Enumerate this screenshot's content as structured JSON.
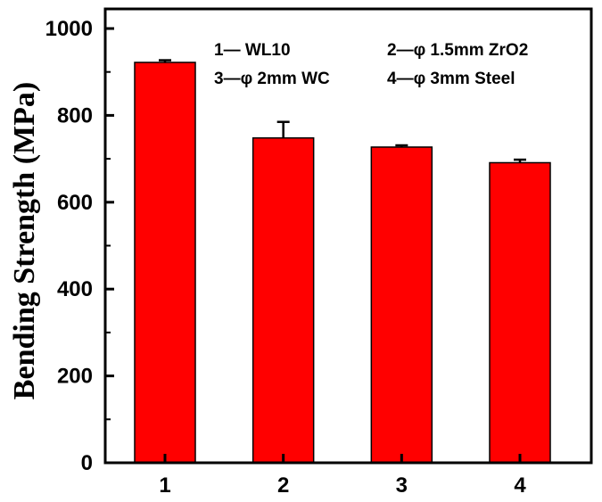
{
  "chart_data": {
    "type": "bar",
    "categories": [
      "1",
      "2",
      "3",
      "4"
    ],
    "values": [
      922,
      748,
      727,
      691
    ],
    "errors": [
      5,
      37,
      4,
      7
    ],
    "xlabel": "",
    "ylabel": "Bending Strength (MPa)",
    "ylim": [
      0,
      1000
    ],
    "yticks": [
      0,
      200,
      400,
      600,
      800,
      1000
    ],
    "grid": false,
    "bar_color": "#ff0000",
    "legend_placement": "top",
    "legend": [
      "1— WL10",
      "2—φ 1.5mm ZrO2",
      "3—φ 2mm WC",
      "4—φ 3mm Steel"
    ]
  }
}
